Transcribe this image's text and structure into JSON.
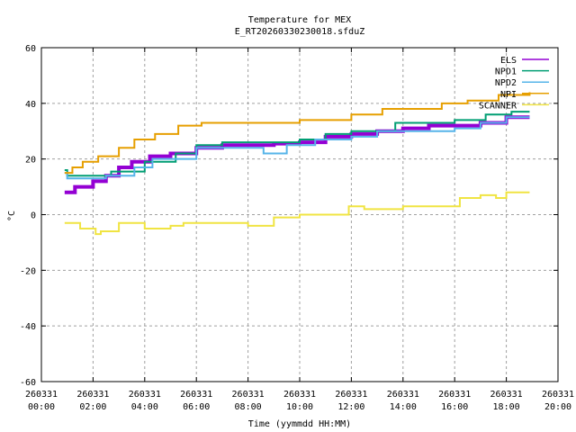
{
  "chart_data": {
    "type": "line",
    "title": "Temperature for MEX",
    "subtitle": "E_RT20260330230018.sfduZ",
    "xlabel": "Time (yymmdd HH:MM)",
    "ylabel": "°C",
    "xlim_hours": [
      0,
      20
    ],
    "ylim": [
      -60,
      60
    ],
    "grid": true,
    "legend_position": "top-right",
    "x_ticks": [
      {
        "date": "260331",
        "time": "00:00"
      },
      {
        "date": "260331",
        "time": "02:00"
      },
      {
        "date": "260331",
        "time": "04:00"
      },
      {
        "date": "260331",
        "time": "06:00"
      },
      {
        "date": "260331",
        "time": "08:00"
      },
      {
        "date": "260331",
        "time": "10:00"
      },
      {
        "date": "260331",
        "time": "12:00"
      },
      {
        "date": "260331",
        "time": "14:00"
      },
      {
        "date": "260331",
        "time": "16:00"
      },
      {
        "date": "260331",
        "time": "18:00"
      },
      {
        "date": "260331",
        "time": "20:00"
      }
    ],
    "y_ticks": [
      "60",
      "40",
      "20",
      "0",
      "-20",
      "-40",
      "-60"
    ],
    "series": [
      {
        "name": "ELS",
        "color": "#9400d3",
        "x": [
          "00:54",
          "01:18",
          "02:00",
          "02:30",
          "03:00",
          "03:30",
          "04:12",
          "05:00",
          "06:00",
          "07:00",
          "09:00",
          "10:00",
          "11:00",
          "12:00",
          "13:00",
          "14:00",
          "15:00",
          "17:00",
          "18:00",
          "18:54"
        ],
        "y": [
          8,
          10,
          12,
          14,
          17,
          19,
          21,
          22,
          24,
          25,
          25.5,
          26,
          28,
          29,
          30,
          31,
          32,
          33,
          35,
          35
        ]
      },
      {
        "name": "NPD1",
        "color": "#009e73",
        "x": [
          "00:54",
          "01:00",
          "02:42",
          "04:00",
          "05:12",
          "06:00",
          "07:00",
          "10:00",
          "11:00",
          "12:00",
          "13:42",
          "16:00",
          "17:12",
          "18:12",
          "18:54"
        ],
        "y": [
          16,
          14,
          15.5,
          19,
          22,
          25,
          26,
          27,
          29,
          30,
          33,
          34,
          36,
          37,
          37
        ]
      },
      {
        "name": "NPD2",
        "color": "#56b4e9",
        "x": [
          "00:54",
          "01:00",
          "02:30",
          "03:36",
          "04:18",
          "06:00",
          "08:36",
          "09:30",
          "10:36",
          "12:00",
          "13:00",
          "16:00",
          "17:00",
          "18:00",
          "18:54"
        ],
        "y": [
          15,
          13,
          14,
          17,
          20,
          24,
          22,
          25,
          27,
          28,
          30,
          31,
          33,
          35,
          35
        ]
      },
      {
        "name": "NPI",
        "color": "#e69f00",
        "x": [
          "00:54",
          "01:12",
          "01:36",
          "02:12",
          "03:00",
          "03:36",
          "04:24",
          "05:18",
          "06:12",
          "10:00",
          "12:00",
          "13:12",
          "15:30",
          "16:30",
          "17:42",
          "18:54"
        ],
        "y": [
          15,
          17,
          19,
          21,
          24,
          27,
          29,
          32,
          33,
          34,
          36,
          38,
          40,
          41,
          43,
          44
        ]
      },
      {
        "name": "SCANNER",
        "color": "#f0e442",
        "x": [
          "00:54",
          "01:30",
          "02:06",
          "02:18",
          "03:00",
          "04:00",
          "05:00",
          "05:30",
          "08:00",
          "09:00",
          "10:00",
          "11:54",
          "12:30",
          "14:00",
          "16:12",
          "17:00",
          "17:36",
          "18:00",
          "18:54"
        ],
        "y": [
          -3,
          -5,
          -7,
          -6,
          -3,
          -5,
          -4,
          -3,
          -4,
          -1,
          0,
          3,
          2,
          3,
          6,
          7,
          6,
          8,
          8
        ]
      }
    ]
  }
}
